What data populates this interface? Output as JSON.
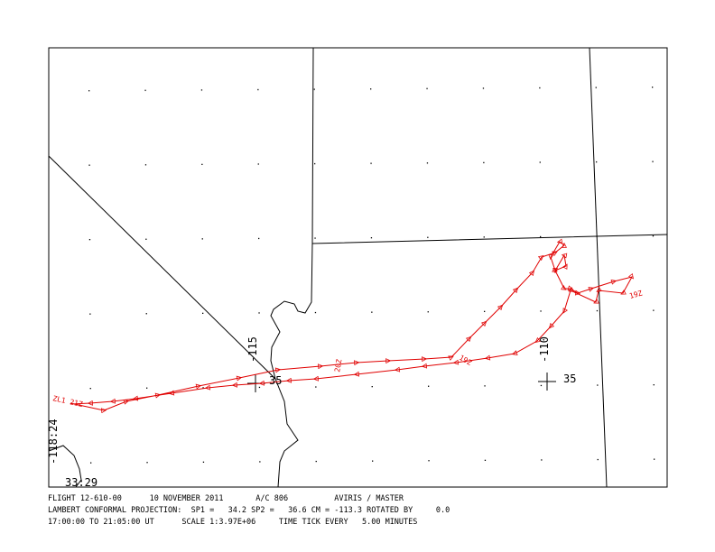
{
  "map": {
    "grid_labels": [
      "-115",
      "35",
      "-110",
      "35",
      "-118:24",
      "33:29"
    ],
    "track_labels": [
      "ZL1 21Z",
      "20Z",
      "19Z",
      "19Z"
    ]
  },
  "footer": {
    "lines": [
      "FLIGHT 12-610-00      10 NOVEMBER 2011       A/C 806          AVIRIS / MASTER",
      "LAMBERT CONFORMAL PROJECTION:  SP1 =   34.2 SP2 =   36.6 CM = -113.3 ROTATED BY     0.0",
      "17:00:00 TO 21:05:00 UT      SCALE 1:3.97E+06     TIME TICK EVERY   5.00 MINUTES"
    ]
  }
}
